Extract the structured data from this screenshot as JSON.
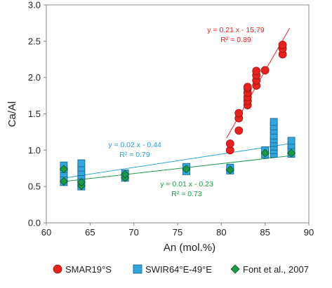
{
  "chart_data": {
    "type": "scatter",
    "xlabel": "An (mol.%)",
    "ylabel": "Ca/Al",
    "xlim": [
      60,
      90
    ],
    "ylim": [
      0.0,
      3.0
    ],
    "xticks": [
      "60",
      "65",
      "70",
      "75",
      "80",
      "85",
      "90"
    ],
    "yticks": [
      "0.0",
      "0.5",
      "1.0",
      "1.5",
      "2.0",
      "2.5",
      "3.0"
    ],
    "grid": false,
    "legend_position": "bottom",
    "series": [
      {
        "name": "SMAR19°S",
        "marker": "circle",
        "color": "#e8201e",
        "points": [
          [
            81,
            1.0
          ],
          [
            81,
            1.09
          ],
          [
            82,
            1.27
          ],
          [
            82,
            1.44
          ],
          [
            82,
            1.51
          ],
          [
            83,
            1.62
          ],
          [
            83,
            1.68
          ],
          [
            83,
            1.73
          ],
          [
            83,
            1.79
          ],
          [
            83,
            1.85
          ],
          [
            83,
            1.87
          ],
          [
            84,
            1.89
          ],
          [
            84,
            1.96
          ],
          [
            84,
            2.03
          ],
          [
            84,
            2.09
          ],
          [
            85,
            2.1
          ],
          [
            87,
            2.32
          ],
          [
            87,
            2.4
          ],
          [
            87,
            2.45
          ]
        ],
        "trend": {
          "equation": "y = 0.21 x - 15.79",
          "r2": "R² = 0.89",
          "x_range": [
            80.6,
            87.8
          ]
        }
      },
      {
        "name": "SWIR64°E-49°E",
        "marker": "square",
        "color": "#2fa6e0",
        "points": [
          [
            62,
            0.56
          ],
          [
            62,
            0.62
          ],
          [
            62,
            0.68
          ],
          [
            62,
            0.74
          ],
          [
            62,
            0.79
          ],
          [
            64,
            0.5
          ],
          [
            64,
            0.55
          ],
          [
            64,
            0.6
          ],
          [
            64,
            0.65
          ],
          [
            64,
            0.7
          ],
          [
            64,
            0.76
          ],
          [
            64,
            0.82
          ],
          [
            69,
            0.62
          ],
          [
            69,
            0.68
          ],
          [
            76,
            0.71
          ],
          [
            76,
            0.77
          ],
          [
            81,
            0.72
          ],
          [
            81,
            0.76
          ],
          [
            85,
            0.94
          ],
          [
            85,
            1.0
          ],
          [
            86,
            0.95
          ],
          [
            86,
            1.0
          ],
          [
            86,
            1.05
          ],
          [
            86,
            1.1
          ],
          [
            86,
            1.15
          ],
          [
            86,
            1.2
          ],
          [
            86,
            1.27
          ],
          [
            86,
            1.33
          ],
          [
            86,
            1.39
          ],
          [
            88,
            0.95
          ],
          [
            88,
            1.01
          ],
          [
            88,
            1.07
          ],
          [
            88,
            1.13
          ]
        ],
        "trend": {
          "equation": "y = 0.02 x - 0.44",
          "r2": "R² = 0.79",
          "x_range": [
            62,
            88
          ]
        }
      },
      {
        "name": "Font et al., 2007",
        "marker": "diamond",
        "color": "#1a9a46",
        "points": [
          [
            62,
            0.57
          ],
          [
            62,
            0.74
          ],
          [
            64,
            0.51
          ],
          [
            64,
            0.56
          ],
          [
            69,
            0.62
          ],
          [
            69,
            0.67
          ],
          [
            76,
            0.74
          ],
          [
            81,
            0.73
          ],
          [
            85,
            0.96
          ],
          [
            88,
            0.96
          ]
        ],
        "trend": {
          "equation": "y = 0.01 x - 0.23",
          "r2": "R² = 0.73",
          "x_range": [
            62,
            88
          ]
        }
      }
    ]
  }
}
